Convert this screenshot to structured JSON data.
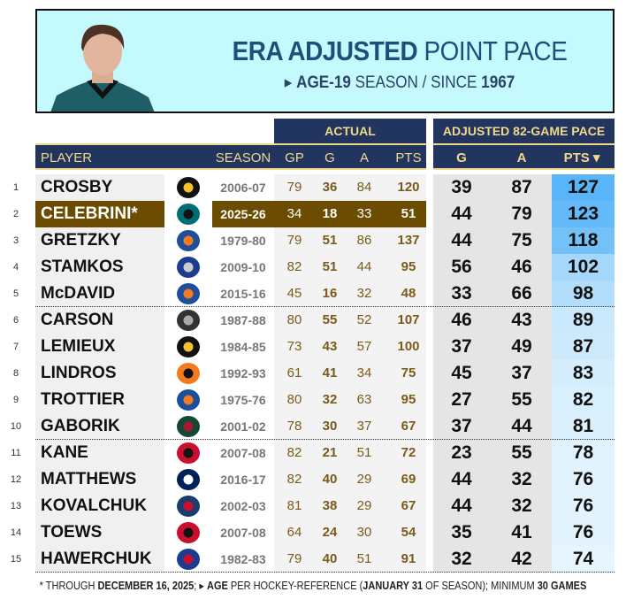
{
  "header": {
    "title_bold": "ERA ADJUSTED",
    "title_rest": "POINT PACE",
    "sub_bold1": "AGE-19",
    "sub_mid": "SEASON / SINCE",
    "sub_bold2": "1967"
  },
  "groups": {
    "actual": "ACTUAL",
    "adjusted": "ADJUSTED 82-GAME PACE"
  },
  "columns": {
    "player": "PLAYER",
    "season": "SEASON",
    "gp": "GP",
    "g": "G",
    "a": "A",
    "pts": "PTS",
    "adj_g": "G",
    "adj_a": "A",
    "adj_pts": "PTS ▾"
  },
  "rows": [
    {
      "rank": "1",
      "name": "CROSBY",
      "team": "penguins",
      "season": "2006-07",
      "gp": "79",
      "g": "36",
      "a": "84",
      "pts": "120",
      "ag": "39",
      "aa": "87",
      "ap": "127",
      "color": "#5ab4f8"
    },
    {
      "rank": "2",
      "name": "CELEBRINI*",
      "team": "sharks",
      "season": "2025-26",
      "gp": "34",
      "g": "18",
      "a": "33",
      "pts": "51",
      "ag": "44",
      "aa": "79",
      "ap": "123",
      "color": "#64b9f8",
      "highlight": true
    },
    {
      "rank": "3",
      "name": "GRETZKY",
      "team": "oilers",
      "season": "1979-80",
      "gp": "79",
      "g": "51",
      "a": "86",
      "pts": "137",
      "ag": "44",
      "aa": "75",
      "ap": "118",
      "color": "#74c1f8"
    },
    {
      "rank": "4",
      "name": "STAMKOS",
      "team": "lightning",
      "season": "2009-10",
      "gp": "82",
      "g": "51",
      "a": "44",
      "pts": "95",
      "ag": "56",
      "aa": "46",
      "ap": "102",
      "color": "#a5d7fa"
    },
    {
      "rank": "5",
      "name": "McDAVID",
      "team": "oilers",
      "season": "2015-16",
      "gp": "45",
      "g": "16",
      "a": "32",
      "pts": "48",
      "ag": "33",
      "aa": "66",
      "ap": "98",
      "color": "#b2ddfb"
    },
    {
      "rank": "6",
      "name": "CARSON",
      "team": "kings",
      "season": "1987-88",
      "gp": "80",
      "g": "55",
      "a": "52",
      "pts": "107",
      "ag": "46",
      "aa": "43",
      "ap": "89",
      "color": "#c9e8fc"
    },
    {
      "rank": "7",
      "name": "LEMIEUX",
      "team": "penguins",
      "season": "1984-85",
      "gp": "73",
      "g": "43",
      "a": "57",
      "pts": "100",
      "ag": "37",
      "aa": "49",
      "ap": "87",
      "color": "#cdeafc"
    },
    {
      "rank": "8",
      "name": "LINDROS",
      "team": "flyers",
      "season": "1992-93",
      "gp": "61",
      "g": "41",
      "a": "34",
      "pts": "75",
      "ag": "45",
      "aa": "37",
      "ap": "83",
      "color": "#d5eefd"
    },
    {
      "rank": "9",
      "name": "TROTTIER",
      "team": "islanders",
      "season": "1975-76",
      "gp": "80",
      "g": "32",
      "a": "63",
      "pts": "95",
      "ag": "27",
      "aa": "55",
      "ap": "82",
      "color": "#d8effd"
    },
    {
      "rank": "10",
      "name": "GABORIK",
      "team": "wild",
      "season": "2001-02",
      "gp": "78",
      "g": "30",
      "a": "37",
      "pts": "67",
      "ag": "37",
      "aa": "44",
      "ap": "81",
      "color": "#daf0fd"
    },
    {
      "rank": "11",
      "name": "KANE",
      "team": "blackhawks",
      "season": "2007-08",
      "gp": "82",
      "g": "21",
      "a": "51",
      "pts": "72",
      "ag": "23",
      "aa": "55",
      "ap": "78",
      "color": "#dff2fd"
    },
    {
      "rank": "12",
      "name": "MATTHEWS",
      "team": "maple-leafs",
      "season": "2016-17",
      "gp": "82",
      "g": "40",
      "a": "29",
      "pts": "69",
      "ag": "44",
      "aa": "32",
      "ap": "76",
      "color": "#e2f3fe"
    },
    {
      "rank": "13",
      "name": "KOVALCHUK",
      "team": "thrashers",
      "season": "2002-03",
      "gp": "81",
      "g": "38",
      "a": "29",
      "pts": "67",
      "ag": "44",
      "aa": "32",
      "ap": "76",
      "color": "#e2f3fe"
    },
    {
      "rank": "14",
      "name": "TOEWS",
      "team": "blackhawks",
      "season": "2007-08",
      "gp": "64",
      "g": "24",
      "a": "30",
      "pts": "54",
      "ag": "35",
      "aa": "41",
      "ap": "76",
      "color": "#e2f3fe"
    },
    {
      "rank": "15",
      "name": "HAWERCHUK",
      "team": "jets",
      "season": "1982-83",
      "gp": "79",
      "g": "40",
      "a": "51",
      "pts": "91",
      "ag": "32",
      "aa": "42",
      "ap": "74",
      "color": "#e6f5fe"
    }
  ],
  "footer": {
    "p1": "* THROUGH ",
    "b1": "DECEMBER 16, 2025",
    "p2": ";  ▸ ",
    "b2": "AGE",
    "p3": " PER HOCKEY-REFERENCE (",
    "b3": "JANUARY 31",
    "p4": " OF SEASON); MINIMUM ",
    "b4": "30 GAMES"
  }
}
